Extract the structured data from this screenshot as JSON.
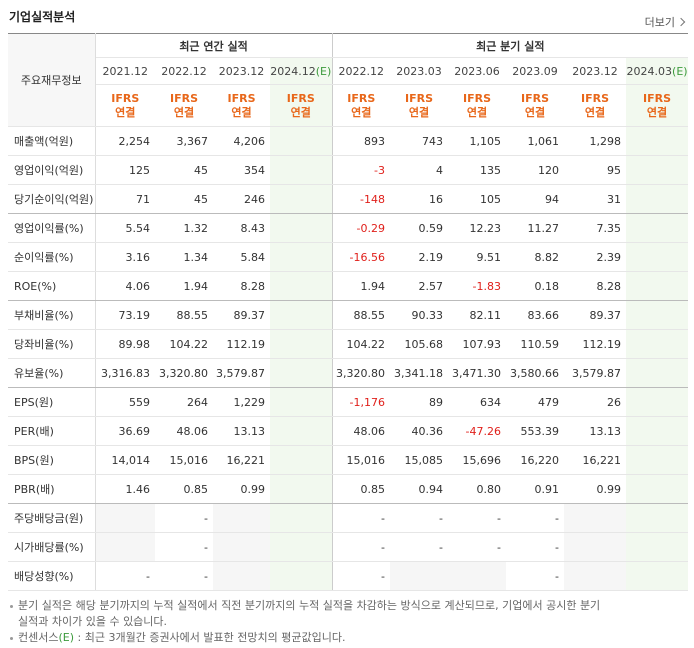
{
  "header": {
    "title": "기업실적분석",
    "more": "더보기"
  },
  "table": {
    "corner": "주요재무정보",
    "groups": [
      "최근 연간 실적",
      "최근 분기 실적"
    ],
    "columns": [
      {
        "period": "2021.12",
        "basis": [
          "IFRS",
          "연결"
        ]
      },
      {
        "period": "2022.12",
        "basis": [
          "IFRS",
          "연결"
        ]
      },
      {
        "period": "2023.12",
        "basis": [
          "IFRS",
          "연결"
        ]
      },
      {
        "period": "2024.12",
        "estimate": "(E)",
        "basis": [
          "IFRS",
          "연결"
        ]
      },
      {
        "period": "2022.12",
        "basis": [
          "IFRS",
          "연결"
        ]
      },
      {
        "period": "2023.03",
        "basis": [
          "IFRS",
          "연결"
        ]
      },
      {
        "period": "2023.06",
        "basis": [
          "IFRS",
          "연결"
        ]
      },
      {
        "period": "2023.09",
        "basis": [
          "IFRS",
          "연결"
        ]
      },
      {
        "period": "2023.12",
        "basis": [
          "IFRS",
          "연결"
        ]
      },
      {
        "period": "2024.03",
        "estimate": "(E)",
        "basis": [
          "IFRS",
          "연결"
        ]
      }
    ],
    "rows": [
      {
        "label": "매출액(억원)",
        "values": [
          "2,254",
          "3,367",
          "4,206",
          null,
          "893",
          "743",
          "1,105",
          "1,061",
          "1,298",
          null
        ]
      },
      {
        "label": "영업이익(억원)",
        "values": [
          "125",
          "45",
          "354",
          null,
          "-3",
          "4",
          "135",
          "120",
          "95",
          null
        ]
      },
      {
        "label": "당기순이익(억원)",
        "values": [
          "71",
          "45",
          "246",
          null,
          "-148",
          "16",
          "105",
          "94",
          "31",
          null
        ]
      },
      {
        "label": "영업이익률(%)",
        "values": [
          "5.54",
          "1.32",
          "8.43",
          null,
          "-0.29",
          "0.59",
          "12.23",
          "11.27",
          "7.35",
          null
        ]
      },
      {
        "label": "순이익률(%)",
        "values": [
          "3.16",
          "1.34",
          "5.84",
          null,
          "-16.56",
          "2.19",
          "9.51",
          "8.82",
          "2.39",
          null
        ]
      },
      {
        "label": "ROE(%)",
        "values": [
          "4.06",
          "1.94",
          "8.28",
          null,
          "1.94",
          "2.57",
          "-1.83",
          "0.18",
          "8.28",
          null
        ]
      },
      {
        "label": "부채비율(%)",
        "values": [
          "73.19",
          "88.55",
          "89.37",
          null,
          "88.55",
          "90.33",
          "82.11",
          "83.66",
          "89.37",
          null
        ]
      },
      {
        "label": "당좌비율(%)",
        "values": [
          "89.98",
          "104.22",
          "112.19",
          null,
          "104.22",
          "105.68",
          "107.93",
          "110.59",
          "112.19",
          null
        ]
      },
      {
        "label": "유보율(%)",
        "values": [
          "3,316.83",
          "3,320.80",
          "3,579.87",
          null,
          "3,320.80",
          "3,341.18",
          "3,471.30",
          "3,580.66",
          "3,579.87",
          null
        ]
      },
      {
        "label": "EPS(원)",
        "values": [
          "559",
          "264",
          "1,229",
          null,
          "-1,176",
          "89",
          "634",
          "479",
          "26",
          null
        ]
      },
      {
        "label": "PER(배)",
        "values": [
          "36.69",
          "48.06",
          "13.13",
          null,
          "48.06",
          "40.36",
          "-47.26",
          "553.39",
          "13.13",
          null
        ]
      },
      {
        "label": "BPS(원)",
        "values": [
          "14,014",
          "15,016",
          "16,221",
          null,
          "15,016",
          "15,085",
          "15,696",
          "16,220",
          "16,221",
          null
        ]
      },
      {
        "label": "PBR(배)",
        "values": [
          "1.46",
          "0.85",
          "0.99",
          null,
          "0.85",
          "0.94",
          "0.80",
          "0.91",
          "0.99",
          null
        ]
      },
      {
        "label": "주당배당금(원)",
        "values": [
          null,
          "-",
          null,
          null,
          "-",
          "-",
          "-",
          "-",
          null,
          null
        ]
      },
      {
        "label": "시가배당률(%)",
        "values": [
          null,
          "-",
          null,
          null,
          "-",
          "-",
          "-",
          "-",
          null,
          null
        ]
      },
      {
        "label": "배당성향(%)",
        "values": [
          "-",
          "-",
          null,
          null,
          "-",
          null,
          null,
          "-",
          null,
          null
        ]
      }
    ]
  },
  "notes": [
    [
      "분기 실적은 해당 분기까지의 누적 실적에서 직전 분기까지의 누적 실적을 차감하는 방식으로 계산되므로, 기업에서 공시한 분기 실적과 차이가 있을 수 있습니다."
    ],
    [
      "컨센서스",
      "(E)",
      " : 최근 3개월간 증권사에서 발표한 전망치의 평균값입니다."
    ]
  ]
}
